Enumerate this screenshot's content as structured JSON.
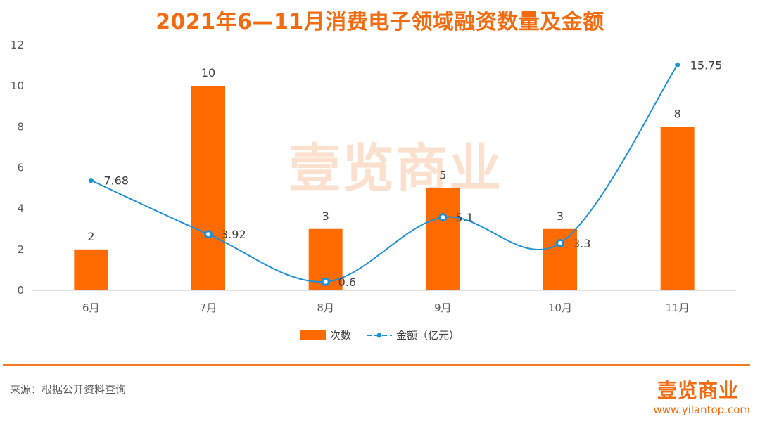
{
  "title": "2021年6—11月消费电子领域融资数量及金额",
  "watermark": "壹览商业",
  "chart_data": {
    "type": "bar",
    "categories": [
      "6月",
      "7月",
      "8月",
      "9月",
      "10月",
      "11月"
    ],
    "series": [
      {
        "name": "次数",
        "type": "bar",
        "values": [
          2,
          10,
          3,
          5,
          3,
          8
        ],
        "color": "#FF6B00"
      },
      {
        "name": "金额（亿元）",
        "type": "line",
        "values": [
          7.68,
          3.92,
          0.6,
          5.1,
          3.3,
          15.75
        ],
        "color": "#1E90D6"
      }
    ],
    "ylim": [
      0,
      12
    ],
    "yticks": [
      0,
      2,
      4,
      6,
      8,
      10,
      12
    ],
    "grid": false,
    "legend_position": "bottom"
  },
  "legend": {
    "bar_label": "次数",
    "line_label": "金额（亿元）"
  },
  "source": "来源：根据公开资料查询",
  "logo": "壹览商业",
  "url": "www.yilantop.com"
}
